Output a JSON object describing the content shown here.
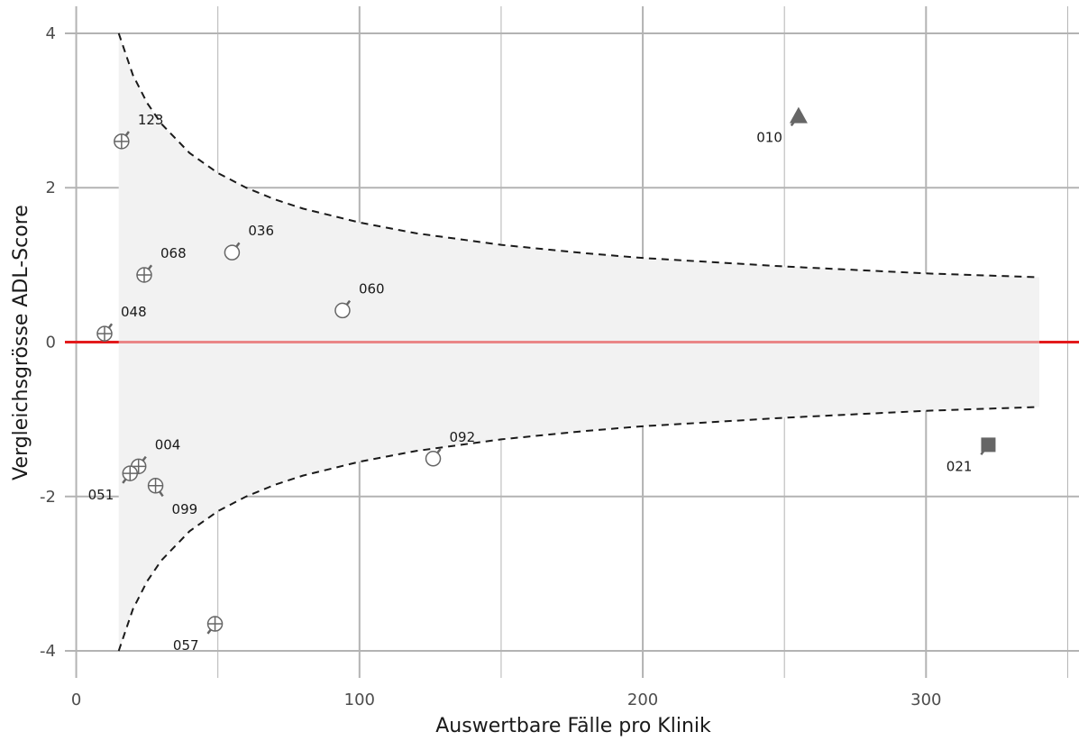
{
  "chart_data": {
    "type": "scatter",
    "title": "",
    "xlabel": "Auswertbare Fälle pro Klinik",
    "ylabel": "Vergleichsgrösse ADL-Score",
    "xlim": [
      -4,
      354
    ],
    "ylim": [
      -4.35,
      4.35
    ],
    "x_ticks": [
      0,
      100,
      200,
      300
    ],
    "y_ticks": [
      -4,
      -2,
      0,
      2,
      4
    ],
    "x_minor_ticks": [
      50,
      150,
      250,
      350
    ],
    "grid": true,
    "reference_line": {
      "y": 0,
      "color": "#e31a1c"
    },
    "funnel": {
      "fill": "#f2f2f2",
      "line_style": "dashed",
      "x_start": 15,
      "x_end": 340,
      "upper": [
        [
          15,
          4.0
        ],
        [
          20,
          3.46
        ],
        [
          25,
          3.1
        ],
        [
          30,
          2.83
        ],
        [
          40,
          2.45
        ],
        [
          50,
          2.19
        ],
        [
          60,
          2.0
        ],
        [
          70,
          1.85
        ],
        [
          80,
          1.73
        ],
        [
          100,
          1.55
        ],
        [
          120,
          1.41
        ],
        [
          150,
          1.26
        ],
        [
          180,
          1.15
        ],
        [
          200,
          1.09
        ],
        [
          250,
          0.98
        ],
        [
          300,
          0.89
        ],
        [
          340,
          0.84
        ]
      ],
      "lower": [
        [
          15,
          -4.0
        ],
        [
          20,
          -3.46
        ],
        [
          25,
          -3.1
        ],
        [
          30,
          -2.83
        ],
        [
          40,
          -2.45
        ],
        [
          50,
          -2.19
        ],
        [
          60,
          -2.0
        ],
        [
          70,
          -1.85
        ],
        [
          80,
          -1.73
        ],
        [
          100,
          -1.55
        ],
        [
          120,
          -1.41
        ],
        [
          150,
          -1.26
        ],
        [
          180,
          -1.15
        ],
        [
          200,
          -1.09
        ],
        [
          250,
          -0.98
        ],
        [
          300,
          -0.89
        ],
        [
          340,
          -0.84
        ]
      ]
    },
    "points": [
      {
        "label": "123",
        "x": 16,
        "y": 2.6,
        "shape": "circle-cross"
      },
      {
        "label": "068",
        "x": 24,
        "y": 0.87,
        "shape": "circle-cross"
      },
      {
        "label": "048",
        "x": 10,
        "y": 0.11,
        "shape": "circle-cross"
      },
      {
        "label": "036",
        "x": 55,
        "y": 1.16,
        "shape": "circle-open"
      },
      {
        "label": "060",
        "x": 94,
        "y": 0.41,
        "shape": "circle-open"
      },
      {
        "label": "092",
        "x": 126,
        "y": -1.51,
        "shape": "circle-open"
      },
      {
        "label": "004",
        "x": 22,
        "y": -1.61,
        "shape": "circle-cross"
      },
      {
        "label": "051",
        "x": 19,
        "y": -1.7,
        "shape": "circle-cross"
      },
      {
        "label": "099",
        "x": 28,
        "y": -1.86,
        "shape": "circle-cross"
      },
      {
        "label": "057",
        "x": 49,
        "y": -3.65,
        "shape": "circle-cross"
      },
      {
        "label": "010",
        "x": 255,
        "y": 2.93,
        "shape": "triangle"
      },
      {
        "label": "021",
        "x": 322,
        "y": -1.33,
        "shape": "square"
      }
    ],
    "colors": {
      "point": "#666666",
      "label_segment": "#666666",
      "grid": "#b3b3b3",
      "funnel_line": "#1a1a1a",
      "reference": "#e31a1c"
    }
  }
}
